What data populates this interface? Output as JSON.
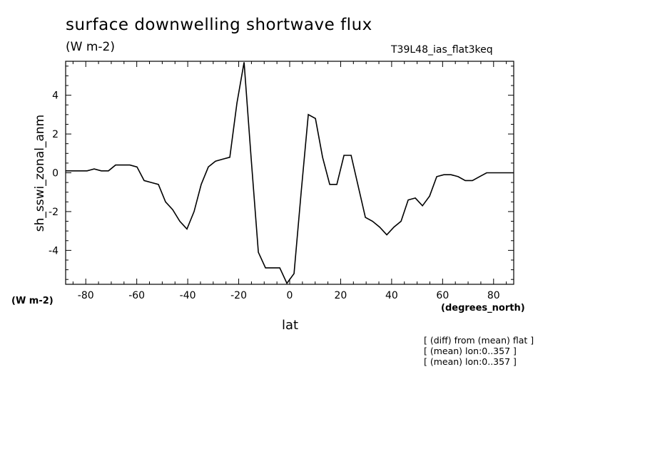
{
  "chart_data": {
    "type": "line",
    "title": "surface downwelling shortwave flux",
    "units": "(W m-2)",
    "run_id": "T39L48_ias_flat3keq",
    "xlabel": "lat",
    "x_units": "(degrees_north)",
    "ylabel": "sh_sswi_zonal_anm",
    "y_units": "(W m-2)",
    "xlim": [
      -87.9,
      87.9
    ],
    "ylim": [
      -5.75,
      5.75
    ],
    "x_ticks": [
      -80,
      -60,
      -40,
      -20,
      0,
      20,
      40,
      60,
      80
    ],
    "x_tick_labels": [
      "-80",
      "-60",
      "-40",
      "-20",
      "0",
      "20",
      "40",
      "60",
      "80"
    ],
    "y_ticks": [
      -4,
      -2,
      0,
      2,
      4
    ],
    "y_tick_labels": [
      "-4",
      "-2",
      "0",
      "2",
      "4"
    ],
    "grid": false,
    "series": [
      {
        "x": [
          -87.9,
          -85.1,
          -82.3,
          -79.5,
          -76.7,
          -73.9,
          -71.1,
          -68.3,
          -65.5,
          -62.7,
          -59.9,
          -57.1,
          -54.3,
          -51.5,
          -48.7,
          -45.9,
          -43.1,
          -40.3,
          -37.5,
          -34.7,
          -31.9,
          -29.1,
          -26.3,
          -23.5,
          -20.7,
          -17.9,
          -15.1,
          -12.3,
          -9.5,
          -6.7,
          -3.9,
          -1.1,
          1.7,
          4.5,
          7.3,
          10.1,
          12.9,
          15.7,
          18.5,
          21.3,
          24.1,
          26.9,
          29.7,
          32.5,
          35.3,
          38.1,
          40.9,
          43.7,
          46.5,
          49.3,
          52.1,
          54.9,
          57.7,
          60.5,
          63.3,
          66.1,
          68.9,
          71.7,
          74.5,
          77.3,
          80.1,
          82.9,
          85.7,
          87.9
        ],
        "values": [
          0.1,
          0.1,
          0.1,
          0.1,
          0.2,
          0.1,
          0.1,
          0.4,
          0.4,
          0.4,
          0.3,
          -0.4,
          -0.5,
          -0.6,
          -1.5,
          -1.9,
          -2.5,
          -2.9,
          -2.0,
          -0.6,
          0.3,
          0.6,
          0.7,
          0.8,
          3.6,
          5.7,
          0.7,
          -4.1,
          -4.9,
          -4.9,
          -4.9,
          -5.7,
          -5.2,
          -1.0,
          3.0,
          2.8,
          0.8,
          -0.6,
          -0.6,
          0.9,
          0.9,
          -0.7,
          -2.3,
          -2.5,
          -2.8,
          -3.2,
          -2.8,
          -2.5,
          -1.4,
          -1.3,
          -1.7,
          -1.2,
          -0.2,
          -0.1,
          -0.1,
          -0.2,
          -0.4,
          -0.4,
          -0.2,
          0.0,
          0.0,
          0.0,
          0.0,
          0.0
        ]
      }
    ],
    "notes": [
      "[ (diff) from (mean) flat ]",
      "[ (mean) lon:0..357 ]",
      "[ (mean) lon:0..357 ]"
    ],
    "line_color": "#000000"
  }
}
